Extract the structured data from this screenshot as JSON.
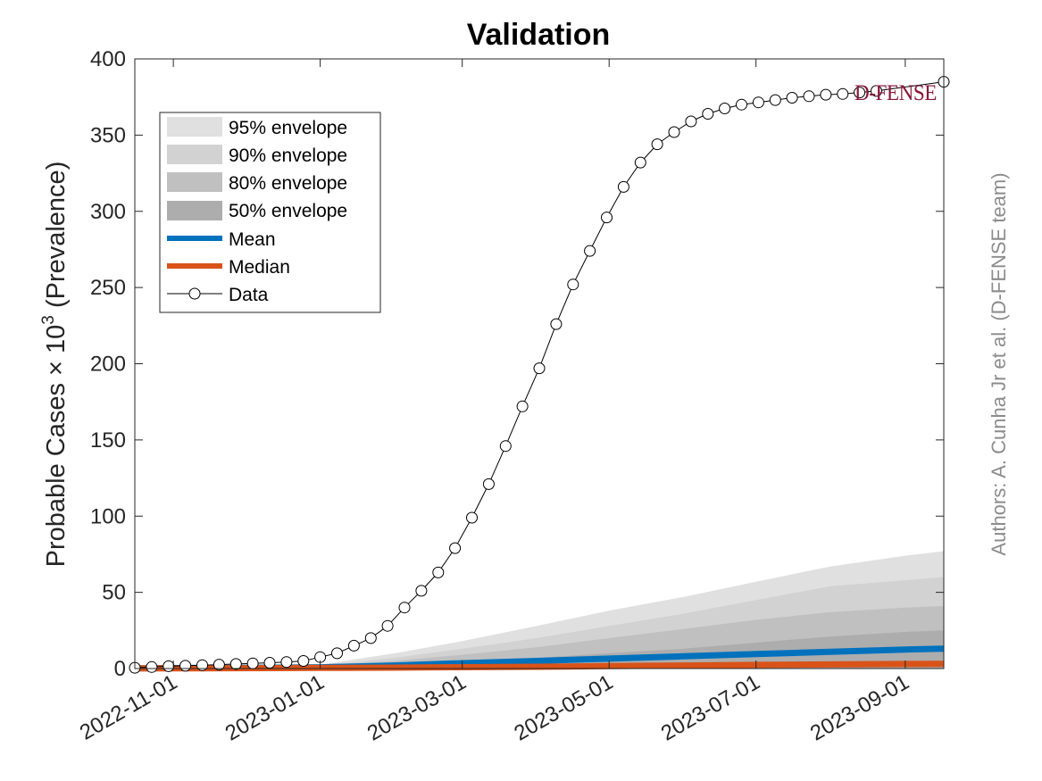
{
  "chart_data": {
    "type": "area",
    "title": "Validation",
    "ylabel_main": "Probable Cases ",
    "ylabel_times": "×",
    "ylabel_base": " 10",
    "ylabel_exp": "3",
    "ylabel_suffix": " (Prevalence)",
    "xlim": [
      "2022-10-16",
      "2023-09-17"
    ],
    "ylim": [
      0,
      400
    ],
    "y_ticks": [
      "0",
      "50",
      "100",
      "150",
      "200",
      "250",
      "300",
      "350",
      "400"
    ],
    "x_ticks": [
      "2022-11-01",
      "2023-01-01",
      "2023-03-01",
      "2023-05-01",
      "2023-07-01",
      "2023-09-01"
    ],
    "legend_position": "top-left",
    "legend": {
      "env95": "95% envelope",
      "env90": "90% envelope",
      "env80": "80% envelope",
      "env50": "50% envelope",
      "mean": "Mean",
      "median": "Median",
      "data": "Data"
    },
    "colors": {
      "env95": "#e0e0e0",
      "env90": "#d2d2d2",
      "env80": "#c0c0c0",
      "env50": "#adadad",
      "mean": "#0072bd",
      "median": "#d95319",
      "data": "#000000"
    },
    "data_series": {
      "dates": [
        "2022-10-16",
        "2022-10-23",
        "2022-10-30",
        "2022-11-06",
        "2022-11-13",
        "2022-11-20",
        "2022-11-27",
        "2022-12-04",
        "2022-12-11",
        "2022-12-18",
        "2022-12-25",
        "2023-01-01",
        "2023-01-08",
        "2023-01-15",
        "2023-01-22",
        "2023-01-29",
        "2023-02-05",
        "2023-02-12",
        "2023-02-19",
        "2023-02-26",
        "2023-03-05",
        "2023-03-12",
        "2023-03-19",
        "2023-03-26",
        "2023-04-02",
        "2023-04-09",
        "2023-04-16",
        "2023-04-23",
        "2023-04-30",
        "2023-05-07",
        "2023-05-14",
        "2023-05-21",
        "2023-05-28",
        "2023-06-04",
        "2023-06-11",
        "2023-06-18",
        "2023-06-25",
        "2023-07-02",
        "2023-07-09",
        "2023-07-16",
        "2023-07-23",
        "2023-07-30",
        "2023-08-06",
        "2023-08-13",
        "2023-08-20",
        "2023-09-17"
      ],
      "values": [
        0.5,
        1.0,
        1.5,
        1.8,
        2.2,
        2.6,
        3.0,
        3.4,
        3.8,
        4.3,
        5.0,
        7.5,
        10,
        15,
        20,
        28,
        40,
        51,
        63,
        79,
        99,
        121,
        146,
        172,
        197,
        226,
        252,
        274,
        296,
        316,
        332,
        344,
        352,
        359,
        364,
        367.5,
        370,
        371.5,
        373,
        374.5,
        375.5,
        376.5,
        377,
        378,
        379,
        385
      ]
    },
    "forecast": {
      "dates": [
        "2022-10-16",
        "2022-11-13",
        "2022-12-11",
        "2023-01-01",
        "2023-02-01",
        "2023-03-01",
        "2023-04-01",
        "2023-05-01",
        "2023-06-01",
        "2023-07-01",
        "2023-08-01",
        "2023-09-01",
        "2023-09-17"
      ],
      "env95_upper": [
        0.5,
        1.0,
        1.5,
        2.5,
        10,
        18,
        28,
        38,
        47,
        57,
        67,
        74,
        77
      ],
      "env90_upper": [
        0.5,
        0.9,
        1.3,
        2.0,
        7,
        13,
        20,
        28,
        36,
        45,
        54,
        58,
        60
      ],
      "env80_upper": [
        0.4,
        0.8,
        1.1,
        1.7,
        5,
        9,
        14,
        20,
        26,
        32,
        37,
        40,
        41
      ],
      "env50_upper": [
        0.3,
        0.6,
        0.9,
        1.2,
        2.5,
        4.5,
        7,
        10,
        13,
        17,
        21,
        24,
        25
      ],
      "mean": [
        0.2,
        0.4,
        0.6,
        0.8,
        2,
        3.5,
        5,
        6.5,
        8,
        9.5,
        11,
        12.5,
        13
      ],
      "median": [
        0.1,
        0.2,
        0.3,
        0.4,
        0.6,
        0.9,
        1.2,
        1.6,
        2,
        2.4,
        2.7,
        3,
        3.1
      ]
    },
    "author_note": "Authors: A. Cunha Jr et al. (D-FENSE team)",
    "logo_text": "D-FENSE"
  }
}
